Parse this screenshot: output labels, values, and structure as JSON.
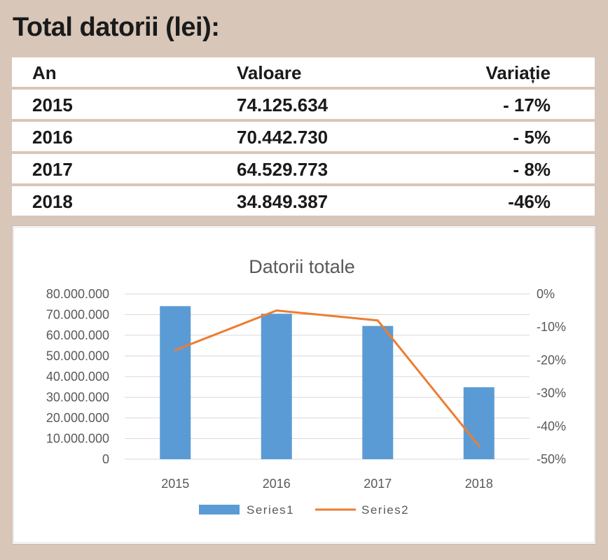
{
  "title": "Total datorii (lei):",
  "table": {
    "headers": [
      "An",
      "Valoare",
      "Variație"
    ],
    "rows": [
      [
        "2015",
        "74.125.634",
        "- 17%"
      ],
      [
        "2016",
        "70.442.730",
        "- 5%"
      ],
      [
        "2017",
        "64.529.773",
        "- 8%"
      ],
      [
        "2018",
        "34.849.387",
        "-46%"
      ]
    ]
  },
  "colors": {
    "bar": "#5b9bd5",
    "line": "#ed7d31",
    "grid": "#d9d9d9",
    "text": "#595959"
  },
  "chart_data": {
    "type": "bar",
    "title": "Datorii totale",
    "categories": [
      "2015",
      "2016",
      "2017",
      "2018"
    ],
    "series": [
      {
        "name": "Series1",
        "type": "bar",
        "axis": "left",
        "values": [
          74125634,
          70442730,
          64529773,
          34849387
        ]
      },
      {
        "name": "Series2",
        "type": "line",
        "axis": "right",
        "values": [
          -17,
          -5,
          -8,
          -46
        ]
      }
    ],
    "y_left": {
      "min": 0,
      "max": 80000000,
      "step": 10000000,
      "tick_labels": [
        "0",
        "10.000.000",
        "20.000.000",
        "30.000.000",
        "40.000.000",
        "50.000.000",
        "60.000.000",
        "70.000.000",
        "80.000.000"
      ]
    },
    "y_right": {
      "min": -50,
      "max": 0,
      "step": 10,
      "tick_labels": [
        "-50%",
        "-40%",
        "-30%",
        "-20%",
        "-10%",
        "0%"
      ]
    },
    "grid": true,
    "legend": "bottom"
  }
}
